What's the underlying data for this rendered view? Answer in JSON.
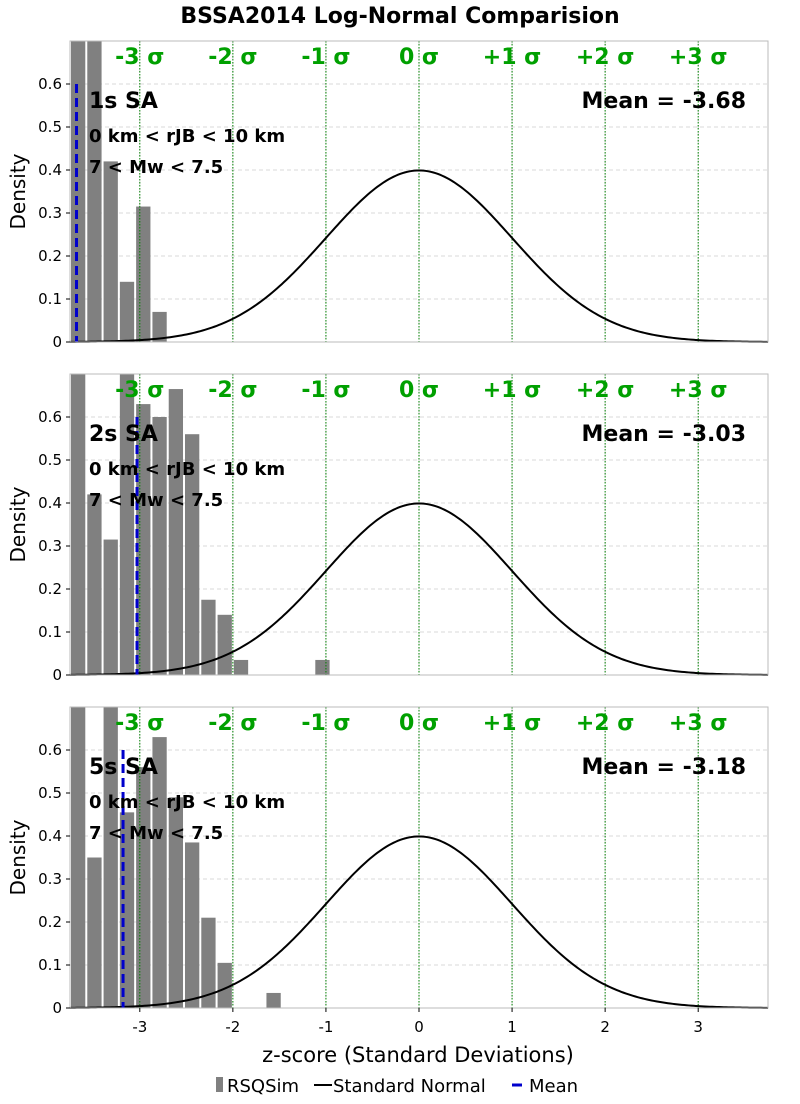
{
  "title": "BSSA2014 Log-Normal Comparision",
  "xlabel": "z-score (Standard Deviations)",
  "ylabel": "Density",
  "legend": {
    "position": "bottom-center",
    "items": [
      {
        "label": "RSQSim",
        "kind": "bar",
        "color": "#808080"
      },
      {
        "label": "Standard Normal",
        "kind": "line",
        "color": "#000000"
      },
      {
        "label": "Mean",
        "kind": "dash",
        "color": "#0000cc"
      }
    ]
  },
  "colors": {
    "bars": "#808080",
    "normal_curve": "#000000",
    "mean_line": "#0000cc",
    "sigma_lines": "#008000",
    "sigma_labels": "#00a000",
    "grid": "#d9d9d9"
  },
  "sigma_labels": [
    "-3 σ",
    "-2 σ",
    "-1 σ",
    "0 σ",
    "+1 σ",
    "+2 σ",
    "+3 σ"
  ],
  "x_tick_labels": [
    "-3",
    "-2",
    "-1",
    "0",
    "1",
    "2",
    "3"
  ],
  "y_tick_labels": [
    "0",
    "0.1",
    "0.2",
    "0.3",
    "0.4",
    "0.5",
    "0.6"
  ],
  "chart_data": [
    {
      "type": "bar",
      "panel_label": "1s SA",
      "distance_label": "0 km < rJB < 10 km",
      "magnitude_label": "7 < Mw < 7.5",
      "mean_text": "Mean = -3.68",
      "mean": -3.68,
      "xlim": [
        -3.75,
        3.75
      ],
      "ylim": [
        0,
        0.7
      ],
      "grid": true,
      "bin_width": 0.175,
      "bins": [
        {
          "x0": -3.75,
          "x1": -3.575,
          "value": 0.7
        },
        {
          "x0": -3.575,
          "x1": -3.4,
          "value": 0.7
        },
        {
          "x0": -3.4,
          "x1": -3.225,
          "value": 0.42
        },
        {
          "x0": -3.225,
          "x1": -3.05,
          "value": 0.14
        },
        {
          "x0": -3.05,
          "x1": -2.875,
          "value": 0.315
        },
        {
          "x0": -2.875,
          "x1": -2.7,
          "value": 0.07
        }
      ],
      "normal_curve": {
        "mu": 0,
        "sigma": 1
      }
    },
    {
      "type": "bar",
      "panel_label": "2s SA",
      "distance_label": "0 km < rJB < 10 km",
      "magnitude_label": "7 < Mw < 7.5",
      "mean_text": "Mean = -3.03",
      "mean": -3.03,
      "xlim": [
        -3.75,
        3.75
      ],
      "ylim": [
        0,
        0.7
      ],
      "grid": true,
      "bin_width": 0.175,
      "bins": [
        {
          "x0": -3.75,
          "x1": -3.575,
          "value": 0.7
        },
        {
          "x0": -3.575,
          "x1": -3.4,
          "value": 0.42
        },
        {
          "x0": -3.4,
          "x1": -3.225,
          "value": 0.315
        },
        {
          "x0": -3.225,
          "x1": -3.05,
          "value": 0.7
        },
        {
          "x0": -3.05,
          "x1": -2.875,
          "value": 0.63
        },
        {
          "x0": -2.875,
          "x1": -2.7,
          "value": 0.6
        },
        {
          "x0": -2.7,
          "x1": -2.525,
          "value": 0.665
        },
        {
          "x0": -2.525,
          "x1": -2.35,
          "value": 0.56
        },
        {
          "x0": -2.35,
          "x1": -2.175,
          "value": 0.175
        },
        {
          "x0": -2.175,
          "x1": -2.0,
          "value": 0.14
        },
        {
          "x0": -2.0,
          "x1": -1.825,
          "value": 0.035
        },
        {
          "x0": -1.125,
          "x1": -0.95,
          "value": 0.035
        }
      ],
      "normal_curve": {
        "mu": 0,
        "sigma": 1
      }
    },
    {
      "type": "bar",
      "panel_label": "5s SA",
      "distance_label": "0 km < rJB < 10 km",
      "magnitude_label": "7 < Mw < 7.5",
      "mean_text": "Mean = -3.18",
      "mean": -3.18,
      "xlim": [
        -3.75,
        3.75
      ],
      "ylim": [
        0,
        0.7
      ],
      "grid": true,
      "bin_width": 0.175,
      "bins": [
        {
          "x0": -3.75,
          "x1": -3.575,
          "value": 0.7
        },
        {
          "x0": -3.575,
          "x1": -3.4,
          "value": 0.35
        },
        {
          "x0": -3.4,
          "x1": -3.225,
          "value": 0.7
        },
        {
          "x0": -3.225,
          "x1": -3.05,
          "value": 0.455
        },
        {
          "x0": -3.05,
          "x1": -2.875,
          "value": 0.56
        },
        {
          "x0": -2.875,
          "x1": -2.7,
          "value": 0.63
        },
        {
          "x0": -2.7,
          "x1": -2.525,
          "value": 0.49
        },
        {
          "x0": -2.525,
          "x1": -2.35,
          "value": 0.385
        },
        {
          "x0": -2.35,
          "x1": -2.175,
          "value": 0.21
        },
        {
          "x0": -2.175,
          "x1": -2.0,
          "value": 0.105
        },
        {
          "x0": -1.65,
          "x1": -1.475,
          "value": 0.035
        }
      ],
      "normal_curve": {
        "mu": 0,
        "sigma": 1
      }
    }
  ]
}
